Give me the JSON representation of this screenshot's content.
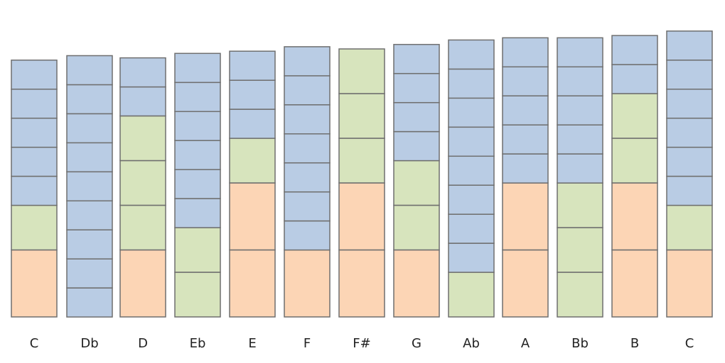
{
  "colors": {
    "blue": "#b9cce4",
    "green": "#d7e4bd",
    "orange": "#fcd5b5",
    "stroke": "#6f6f6f"
  },
  "columns": [
    {
      "label": "C",
      "segments": [
        [
          "orange",
          3
        ],
        [
          "green",
          2
        ],
        [
          "blue",
          1.3
        ],
        [
          "blue",
          1.3
        ],
        [
          "blue",
          1.3
        ],
        [
          "blue",
          1.3
        ],
        [
          "blue",
          1.3
        ]
      ]
    },
    {
      "label": "Db",
      "segments": [
        [
          "blue",
          1.3
        ],
        [
          "blue",
          1.3
        ],
        [
          "blue",
          1.3
        ],
        [
          "blue",
          1.3
        ],
        [
          "blue",
          1.3
        ],
        [
          "blue",
          1.3
        ],
        [
          "blue",
          1.3
        ],
        [
          "blue",
          1.3
        ],
        [
          "blue",
          1.3
        ]
      ]
    },
    {
      "label": "D",
      "segments": [
        [
          "orange",
          3
        ],
        [
          "green",
          2
        ],
        [
          "green",
          2
        ],
        [
          "green",
          2
        ],
        [
          "blue",
          1.3
        ],
        [
          "blue",
          1.3
        ]
      ]
    },
    {
      "label": "Eb",
      "segments": [
        [
          "green",
          2
        ],
        [
          "green",
          2
        ],
        [
          "blue",
          1.3
        ],
        [
          "blue",
          1.3
        ],
        [
          "blue",
          1.3
        ],
        [
          "blue",
          1.3
        ],
        [
          "blue",
          1.3
        ],
        [
          "blue",
          1.3
        ]
      ]
    },
    {
      "label": "E",
      "segments": [
        [
          "orange",
          3
        ],
        [
          "orange",
          3
        ],
        [
          "green",
          2
        ],
        [
          "blue",
          1.3
        ],
        [
          "blue",
          1.3
        ],
        [
          "blue",
          1.3
        ]
      ]
    },
    {
      "label": "F",
      "segments": [
        [
          "orange",
          3
        ],
        [
          "blue",
          1.3
        ],
        [
          "blue",
          1.3
        ],
        [
          "blue",
          1.3
        ],
        [
          "blue",
          1.3
        ],
        [
          "blue",
          1.3
        ],
        [
          "blue",
          1.3
        ],
        [
          "blue",
          1.3
        ]
      ]
    },
    {
      "label": "F#",
      "segments": [
        [
          "orange",
          3
        ],
        [
          "orange",
          3
        ],
        [
          "green",
          2
        ],
        [
          "green",
          2
        ],
        [
          "green",
          2
        ]
      ]
    },
    {
      "label": "G",
      "segments": [
        [
          "orange",
          3
        ],
        [
          "green",
          2
        ],
        [
          "green",
          2
        ],
        [
          "blue",
          1.3
        ],
        [
          "blue",
          1.3
        ],
        [
          "blue",
          1.3
        ],
        [
          "blue",
          1.3
        ]
      ]
    },
    {
      "label": "Ab",
      "segments": [
        [
          "green",
          2
        ],
        [
          "blue",
          1.3
        ],
        [
          "blue",
          1.3
        ],
        [
          "blue",
          1.3
        ],
        [
          "blue",
          1.3
        ],
        [
          "blue",
          1.3
        ],
        [
          "blue",
          1.3
        ],
        [
          "blue",
          1.3
        ],
        [
          "blue",
          1.3
        ]
      ]
    },
    {
      "label": "A",
      "segments": [
        [
          "orange",
          3
        ],
        [
          "orange",
          3
        ],
        [
          "blue",
          1.3
        ],
        [
          "blue",
          1.3
        ],
        [
          "blue",
          1.3
        ],
        [
          "blue",
          1.3
        ],
        [
          "blue",
          1.3
        ]
      ]
    },
    {
      "label": "Bb",
      "segments": [
        [
          "green",
          2
        ],
        [
          "green",
          2
        ],
        [
          "green",
          2
        ],
        [
          "blue",
          1.3
        ],
        [
          "blue",
          1.3
        ],
        [
          "blue",
          1.3
        ],
        [
          "blue",
          1.3
        ],
        [
          "blue",
          1.3
        ]
      ]
    },
    {
      "label": "B",
      "segments": [
        [
          "orange",
          3
        ],
        [
          "orange",
          3
        ],
        [
          "green",
          2
        ],
        [
          "green",
          2
        ],
        [
          "blue",
          1.3
        ],
        [
          "blue",
          1.3
        ]
      ]
    },
    {
      "label": "C",
      "segments": [
        [
          "orange",
          3
        ],
        [
          "green",
          2
        ],
        [
          "blue",
          1.3
        ],
        [
          "blue",
          1.3
        ],
        [
          "blue",
          1.3
        ],
        [
          "blue",
          1.3
        ],
        [
          "blue",
          1.3
        ],
        [
          "blue",
          1.3
        ]
      ]
    }
  ]
}
